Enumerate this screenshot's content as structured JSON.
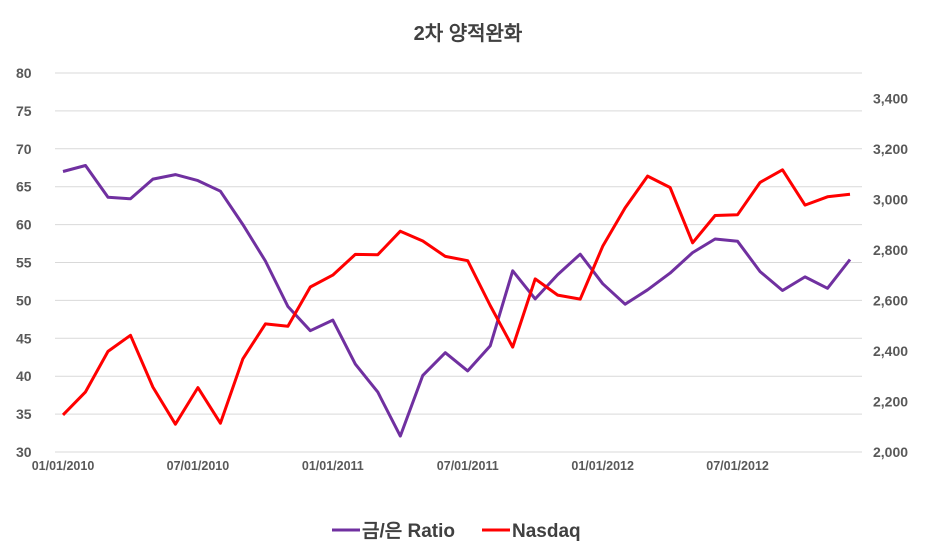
{
  "chart_data": {
    "type": "line",
    "title": "2차 양적완화",
    "x": [
      "2010-01",
      "2010-02",
      "2010-03",
      "2010-04",
      "2010-05",
      "2010-06",
      "2010-07",
      "2010-08",
      "2010-09",
      "2010-10",
      "2010-11",
      "2010-12",
      "2011-01",
      "2011-02",
      "2011-03",
      "2011-04",
      "2011-05",
      "2011-06",
      "2011-07",
      "2011-08",
      "2011-09",
      "2011-10",
      "2011-11",
      "2011-12",
      "2012-01",
      "2012-02",
      "2012-03",
      "2012-04",
      "2012-05",
      "2012-06",
      "2012-07",
      "2012-08",
      "2012-09",
      "2012-10",
      "2012-11",
      "2012-12"
    ],
    "x_tick_labels": [
      "01/01/2010",
      "07/01/2010",
      "01/01/2011",
      "07/01/2011",
      "01/01/2012",
      "07/01/2012"
    ],
    "left_axis": {
      "min": 30,
      "max": 80,
      "ticks": [
        "30",
        "35",
        "40",
        "45",
        "50",
        "55",
        "60",
        "65",
        "70",
        "75",
        "80"
      ]
    },
    "right_axis": {
      "min": 2000,
      "max": 3500,
      "ticks": [
        "2,000",
        "2,200",
        "2,400",
        "2,600",
        "2,800",
        "3,000",
        "3,200",
        "3,400"
      ]
    },
    "grid": true,
    "legend_position": "bottom",
    "series": [
      {
        "name": "금/은 Ratio",
        "axis": "left",
        "color": "#7030A0",
        "values": [
          67.0,
          67.8,
          63.6,
          63.4,
          66.0,
          66.6,
          65.8,
          64.4,
          60.0,
          55.2,
          49.2,
          46.0,
          47.4,
          41.6,
          37.9,
          32.1,
          40.1,
          43.1,
          40.7,
          44.0,
          53.9,
          50.2,
          53.4,
          56.1,
          52.2,
          49.5,
          51.4,
          53.6,
          56.3,
          58.1,
          57.8,
          53.8,
          51.3,
          53.1,
          51.6,
          55.4
        ]
      },
      {
        "name": "Nasdaq",
        "axis": "right",
        "color": "#FF0000",
        "values": [
          2147,
          2238,
          2398,
          2462,
          2257,
          2110,
          2255,
          2114,
          2369,
          2507,
          2498,
          2653,
          2700,
          2782,
          2781,
          2874,
          2835,
          2774,
          2757,
          2580,
          2415,
          2685,
          2621,
          2605,
          2814,
          2966,
          3092,
          3047,
          2828,
          2936,
          2939,
          3067,
          3117,
          2977,
          3010,
          3020
        ]
      }
    ]
  }
}
